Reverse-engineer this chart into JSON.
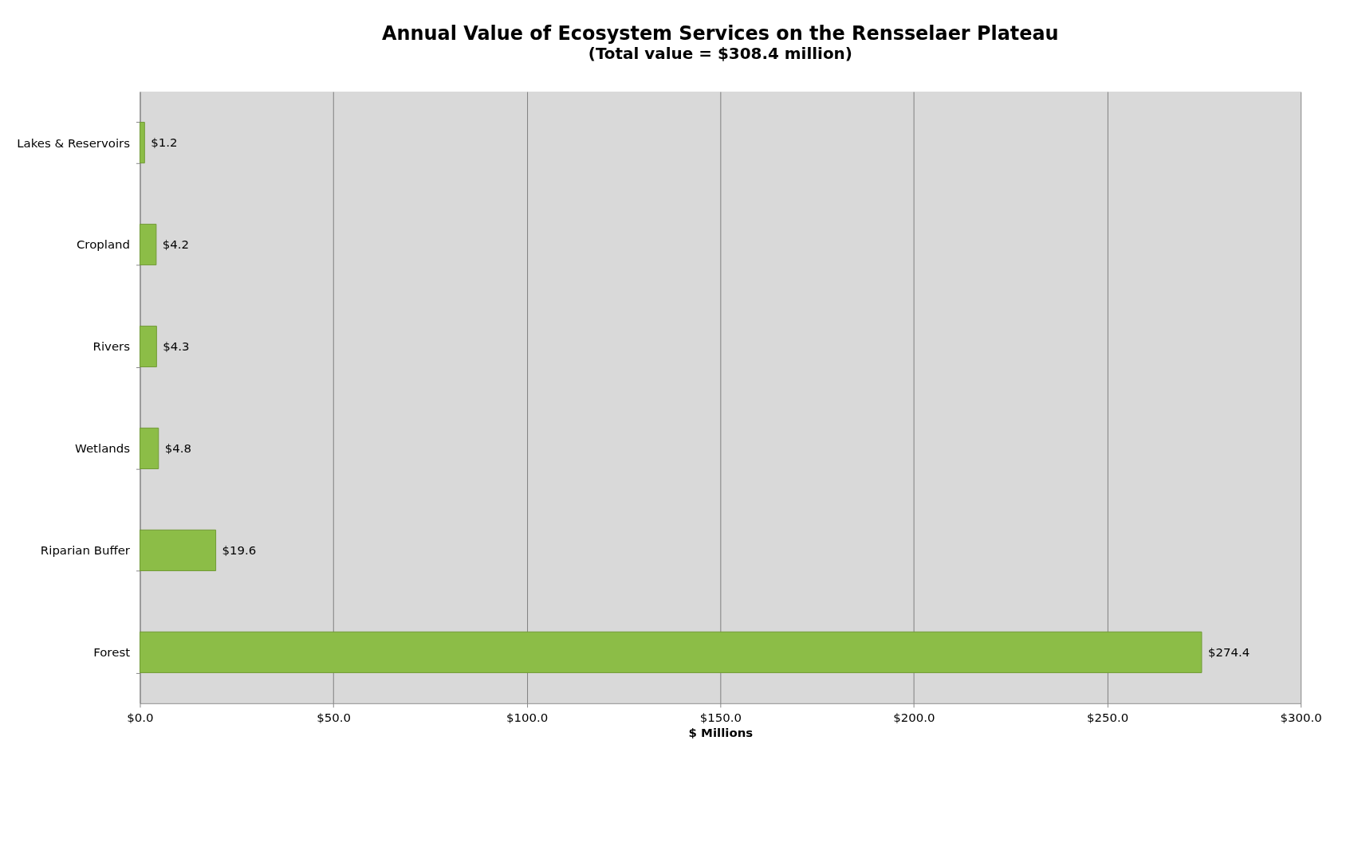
{
  "chart_data": {
    "type": "bar",
    "orientation": "horizontal",
    "title": "Annual Value of Ecosystem Services on the Rensselaer Plateau",
    "subtitle": "(Total value = $308.4 million)",
    "xlabel": "$ Millions",
    "categories": [
      "Lakes & Reservoirs",
      "Cropland",
      "Rivers",
      "Wetlands",
      "Riparian Buffer",
      "Forest"
    ],
    "values": [
      1.2,
      4.2,
      4.3,
      4.8,
      19.6,
      274.4
    ],
    "value_labels": [
      "$1.2",
      "$4.2",
      "$4.3",
      "$4.8",
      "$19.6",
      "$274.4"
    ],
    "color": "#8cbd47",
    "xlim": [
      0,
      300
    ],
    "xticks": [
      {
        "value": 0,
        "label": "$0.0"
      },
      {
        "value": 50,
        "label": "$50.0"
      },
      {
        "value": 100,
        "label": "$100.0"
      },
      {
        "value": 150,
        "label": "$150.0"
      },
      {
        "value": 200,
        "label": "$200.0"
      },
      {
        "value": 250,
        "label": "$250.0"
      },
      {
        "value": 300,
        "label": "$300.0"
      }
    ],
    "grid": "x"
  }
}
